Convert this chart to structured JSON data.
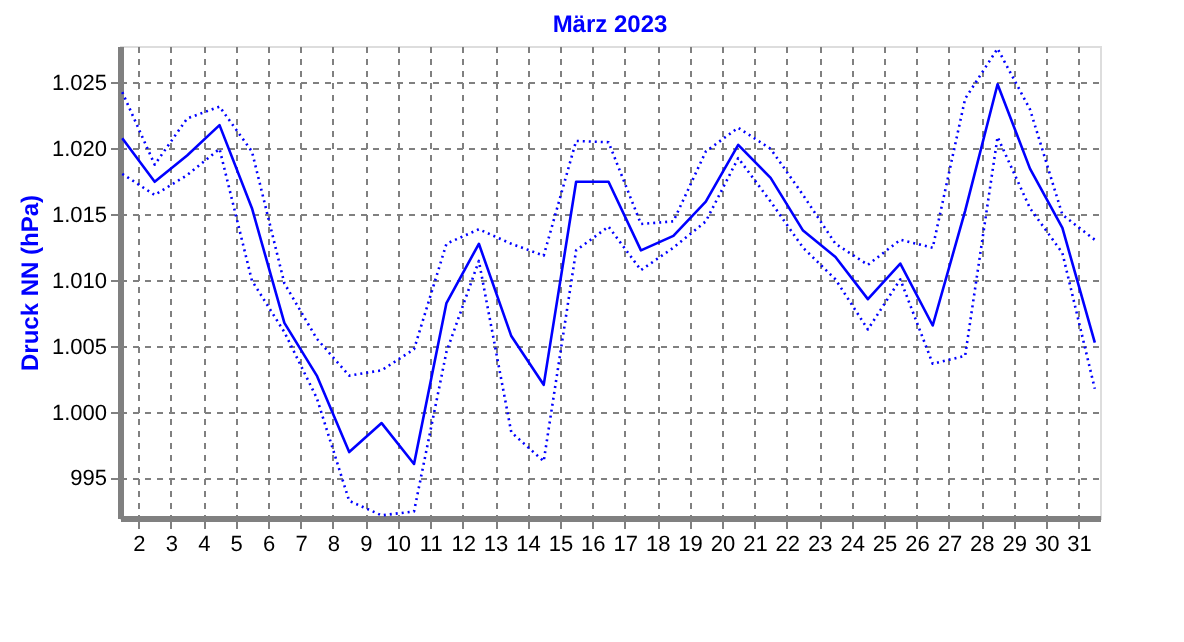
{
  "chart_data": {
    "type": "line",
    "title": "März 2023",
    "ylabel": "Druck NN  (hPa)",
    "x": [
      1.5,
      2.5,
      3.5,
      4.5,
      5.5,
      6.5,
      7.5,
      8.5,
      9.5,
      10.5,
      11.5,
      12.5,
      13.5,
      14.5,
      15.5,
      16.5,
      17.5,
      18.5,
      19.5,
      20.5,
      21.5,
      22.5,
      23.5,
      24.5,
      25.5,
      26.5,
      27.5,
      28.5,
      29.5,
      30.5,
      31.5
    ],
    "series": [
      {
        "color": "#0000ff",
        "line_style": "dotted",
        "values": [
          1024.3,
          1018.8,
          1022.3,
          1023.2,
          1019.8,
          1009.8,
          1005.6,
          1002.8,
          1003.2,
          1004.8,
          1012.8,
          1013.9,
          1012.8,
          1011.9,
          1020.6,
          1020.5,
          1014.3,
          1014.5,
          1019.8,
          1021.6,
          1020.0,
          1016.5,
          1012.8,
          1011.2,
          1013.1,
          1012.5,
          1023.8,
          1027.6,
          1023.0,
          1015.0,
          1013.1
        ]
      },
      {
        "color": "#0000ff",
        "line_style": "solid",
        "values": [
          1020.8,
          1017.5,
          1019.5,
          1021.8,
          1015.5,
          1006.8,
          1002.8,
          997.0,
          999.2,
          996.1,
          1008.3,
          1012.8,
          1005.8,
          1002.1,
          1017.5,
          1017.5,
          1012.3,
          1013.4,
          1016.0,
          1020.3,
          1017.8,
          1013.8,
          1011.8,
          1008.6,
          1011.3,
          1006.6,
          1015.3,
          1024.9,
          1018.5,
          1014.0,
          1005.3
        ]
      },
      {
        "color": "#0000ff",
        "line_style": "dotted",
        "values": [
          1018.1,
          1016.5,
          1018.0,
          1020.0,
          1010.0,
          1006.1,
          1001.1,
          993.3,
          992.2,
          992.5,
          1004.6,
          1011.5,
          998.5,
          996.3,
          1012.3,
          1014.1,
          1010.8,
          1012.5,
          1014.5,
          1019.3,
          1016.0,
          1012.5,
          1010.1,
          1006.3,
          1010.1,
          1003.7,
          1004.3,
          1020.9,
          1015.5,
          1012.1,
          1001.8
        ]
      }
    ],
    "xlim": [
      1.43,
      31.66
    ],
    "xticks": [
      2,
      3,
      4,
      5,
      6,
      7,
      8,
      9,
      10,
      11,
      12,
      13,
      14,
      15,
      16,
      17,
      18,
      19,
      20,
      21,
      22,
      23,
      24,
      25,
      26,
      27,
      28,
      29,
      30,
      31
    ],
    "ylim": [
      992.0,
      1027.8
    ],
    "yticks": [
      995,
      {
        "value": 1000,
        "label": "1.000"
      },
      {
        "value": 1005,
        "label": "1.005"
      },
      {
        "value": 1010,
        "label": "1.010"
      },
      {
        "value": 1015,
        "label": "1.015"
      },
      {
        "value": 1020,
        "label": "1.020"
      },
      {
        "value": 1025,
        "label": "1.025"
      }
    ],
    "grid": true,
    "marker": "none"
  }
}
